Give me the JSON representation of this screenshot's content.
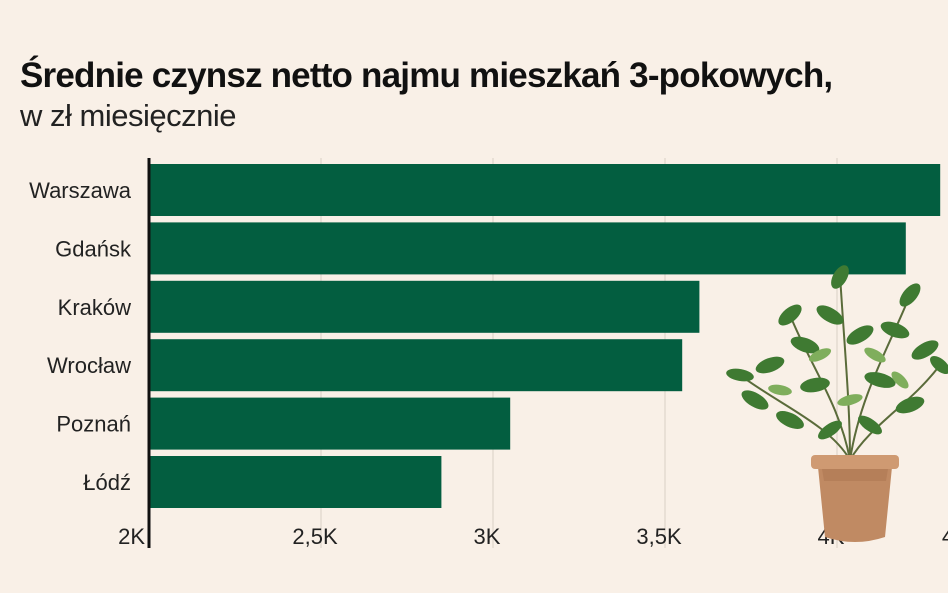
{
  "chart_data": {
    "type": "bar",
    "orientation": "horizontal",
    "title": "Średnie czynsz netto najmu mieszkań 3-pokowych,",
    "subtitle": "w zł miesięcznie",
    "categories": [
      "Warszawa",
      "Gdańsk",
      "Kraków",
      "Wrocław",
      "Poznań",
      "Łódź"
    ],
    "values": [
      4300,
      4200,
      3600,
      3550,
      3050,
      2850
    ],
    "xlim": [
      2000,
      4350
    ],
    "xticks": [
      2000,
      2500,
      3000,
      3500,
      4000
    ],
    "xtick_labels": [
      "2K",
      "2,5K",
      "3K",
      "3,5K",
      "4K"
    ],
    "xtick_partial_label": "4",
    "grid": true,
    "bar_color": "#035e40"
  },
  "decoration": {
    "plant_icon": "potted-plant-icon"
  }
}
